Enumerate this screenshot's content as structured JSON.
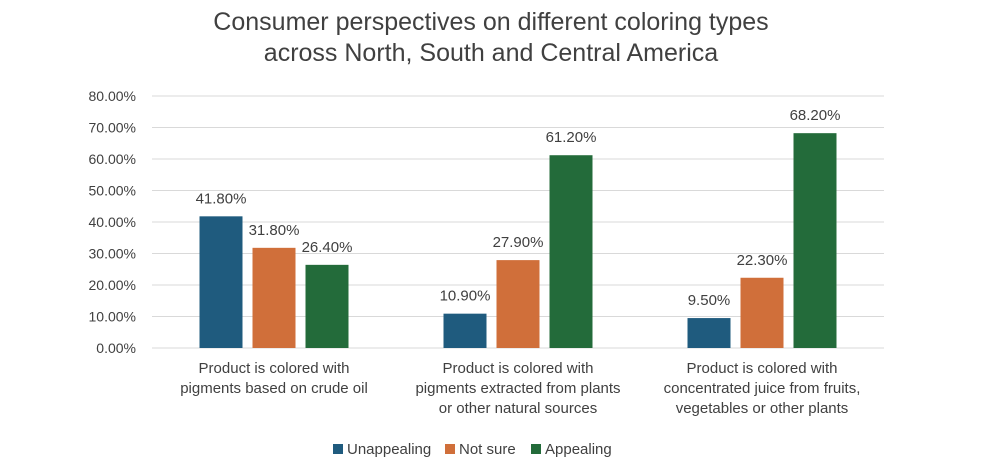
{
  "chart_data": {
    "type": "bar",
    "title_lines": [
      "Consumer perspectives on different coloring types",
      "across North, South and Central America"
    ],
    "categories": [
      [
        "Product is colored with",
        "pigments based on crude oil"
      ],
      [
        "Product is colored with",
        "pigments extracted from plants",
        "or other natural sources"
      ],
      [
        "Product is colored with",
        "concentrated juice from fruits,",
        "vegetables or other plants"
      ]
    ],
    "series": [
      {
        "name": "Unappealing",
        "color": "#1f5b7e",
        "values": [
          41.8,
          10.9,
          9.5
        ],
        "labels": [
          "41.80%",
          "10.90%",
          "9.50%"
        ]
      },
      {
        "name": "Not sure",
        "color": "#d06f3a",
        "values": [
          31.8,
          27.9,
          22.3
        ],
        "labels": [
          "31.80%",
          "27.90%",
          "22.30%"
        ]
      },
      {
        "name": "Appealing",
        "color": "#236b3a",
        "values": [
          26.4,
          61.2,
          68.2
        ],
        "labels": [
          "26.40%",
          "61.20%",
          "68.20%"
        ]
      }
    ],
    "y_ticks": [
      "0.00%",
      "10.00%",
      "20.00%",
      "30.00%",
      "40.00%",
      "50.00%",
      "60.00%",
      "70.00%",
      "80.00%"
    ],
    "ylim": [
      0,
      80
    ],
    "grid": true,
    "legend_position": "bottom"
  }
}
